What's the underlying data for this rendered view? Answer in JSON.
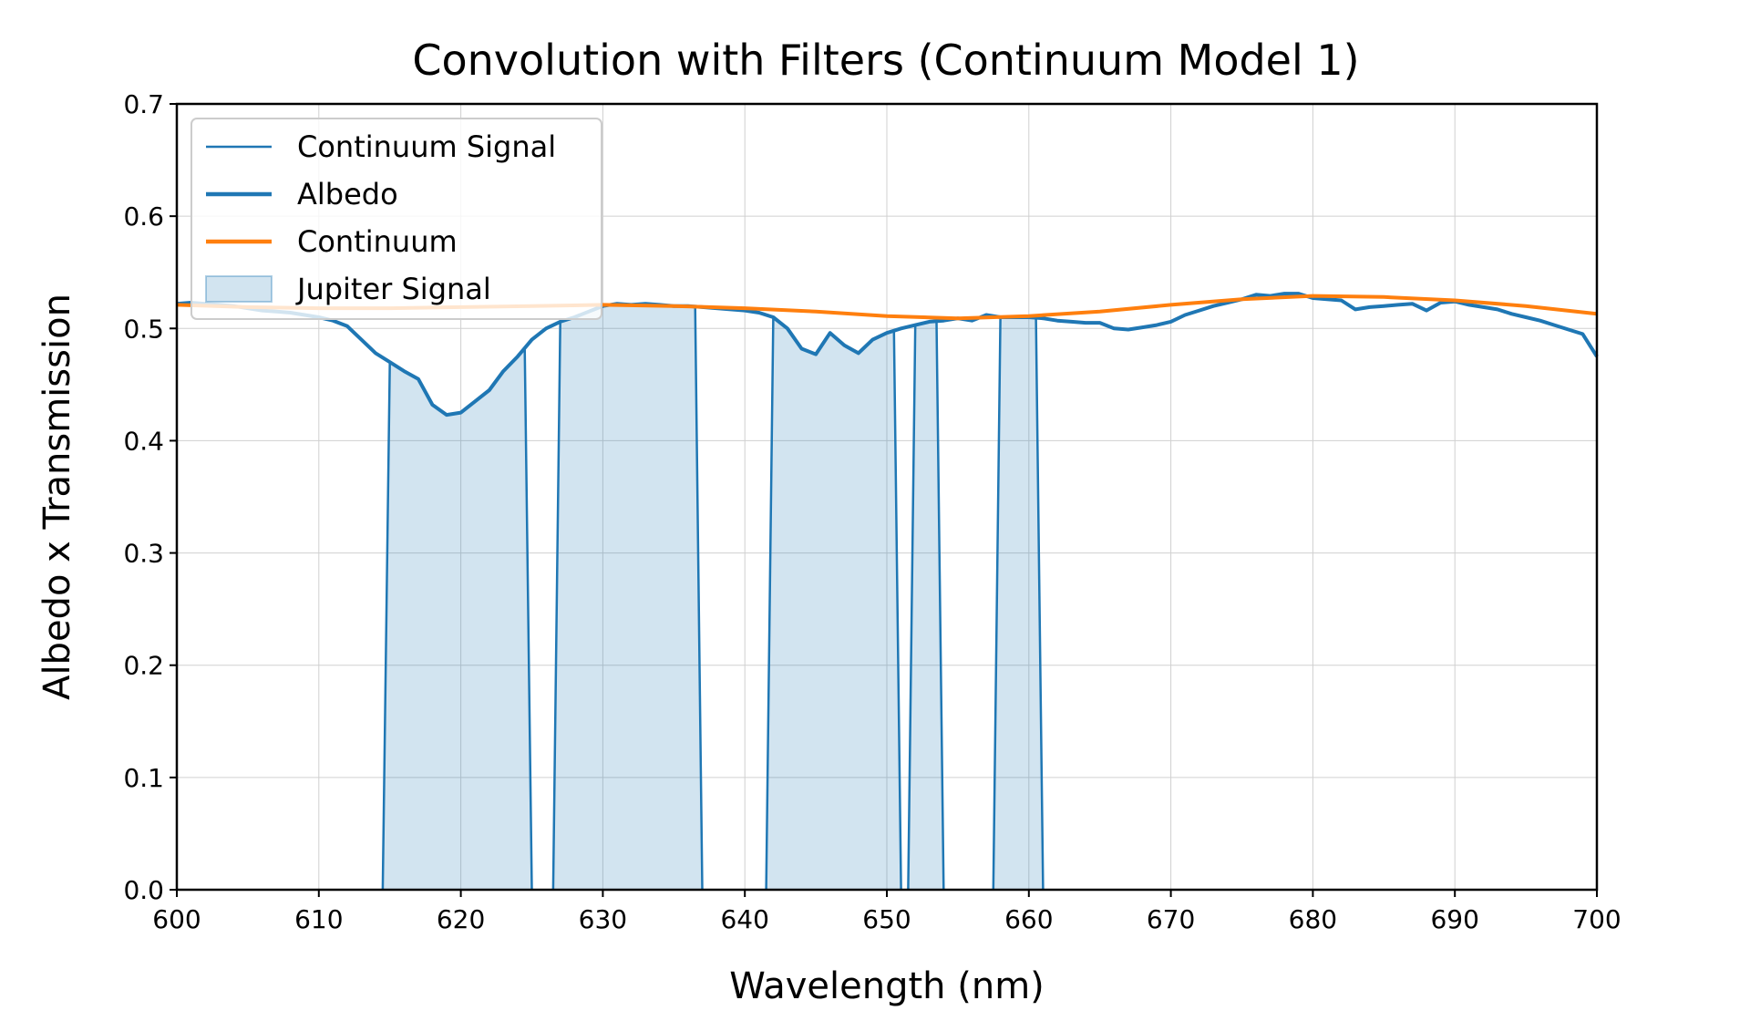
{
  "chart_data": {
    "type": "line",
    "title": "Convolution with Filters (Continuum Model 1)",
    "xlabel": "Wavelength (nm)",
    "ylabel": "Albedo x Transmission",
    "xlim": [
      600,
      700
    ],
    "ylim": [
      0,
      0.7
    ],
    "xticks": [
      "600",
      "610",
      "620",
      "630",
      "640",
      "650",
      "660",
      "670",
      "680",
      "690",
      "700"
    ],
    "yticks": [
      "0.0",
      "0.1",
      "0.2",
      "0.3",
      "0.4",
      "0.5",
      "0.6",
      "0.7"
    ],
    "grid": true,
    "legend_position": "top-left",
    "legend": [
      {
        "label": "Continuum Signal",
        "kind": "thin-line",
        "color": "#1f77b4"
      },
      {
        "label": "Albedo",
        "kind": "line",
        "color": "#1f77b4"
      },
      {
        "label": "Continuum",
        "kind": "line",
        "color": "#ff7f0e"
      },
      {
        "label": "Jupiter Signal",
        "kind": "patch",
        "color": "#1f77b4"
      }
    ],
    "series": [
      {
        "name": "Albedo",
        "color": "#1f77b4",
        "x": [
          600,
          601,
          602,
          603,
          604,
          605,
          606,
          607,
          608,
          609,
          610,
          611,
          612,
          613,
          614,
          615,
          616,
          617,
          618,
          619,
          620,
          621,
          622,
          623,
          624,
          625,
          626,
          627,
          628,
          629,
          630,
          631,
          632,
          633,
          634,
          635,
          636,
          637,
          638,
          639,
          640,
          641,
          642,
          643,
          644,
          645,
          646,
          647,
          648,
          649,
          650,
          651,
          652,
          653,
          654,
          655,
          656,
          657,
          658,
          659,
          660,
          661,
          662,
          663,
          664,
          665,
          666,
          667,
          668,
          669,
          670,
          671,
          672,
          673,
          674,
          675,
          676,
          677,
          678,
          679,
          680,
          681,
          682,
          683,
          684,
          685,
          686,
          687,
          688,
          689,
          690,
          691,
          692,
          693,
          694,
          695,
          696,
          697,
          698,
          699,
          700
        ],
        "y": [
          0.522,
          0.523,
          0.522,
          0.521,
          0.52,
          0.518,
          0.516,
          0.515,
          0.514,
          0.512,
          0.51,
          0.507,
          0.502,
          0.49,
          0.478,
          0.47,
          0.462,
          0.455,
          0.432,
          0.423,
          0.425,
          0.435,
          0.445,
          0.462,
          0.475,
          0.49,
          0.5,
          0.506,
          0.51,
          0.515,
          0.52,
          0.522,
          0.521,
          0.522,
          0.521,
          0.52,
          0.52,
          0.519,
          0.518,
          0.517,
          0.516,
          0.514,
          0.51,
          0.5,
          0.482,
          0.477,
          0.496,
          0.485,
          0.478,
          0.49,
          0.496,
          0.5,
          0.503,
          0.506,
          0.507,
          0.509,
          0.507,
          0.512,
          0.51,
          0.51,
          0.51,
          0.509,
          0.507,
          0.506,
          0.505,
          0.505,
          0.5,
          0.499,
          0.501,
          0.503,
          0.506,
          0.512,
          0.516,
          0.52,
          0.523,
          0.526,
          0.53,
          0.529,
          0.531,
          0.531,
          0.527,
          0.526,
          0.525,
          0.517,
          0.519,
          0.52,
          0.521,
          0.522,
          0.516,
          0.523,
          0.524,
          0.521,
          0.519,
          0.517,
          0.513,
          0.51,
          0.507,
          0.503,
          0.499,
          0.495,
          0.475
        ]
      },
      {
        "name": "Continuum",
        "color": "#ff7f0e",
        "x": [
          600,
          605,
          610,
          615,
          620,
          625,
          630,
          635,
          640,
          645,
          650,
          655,
          660,
          665,
          670,
          675,
          680,
          685,
          690,
          695,
          700
        ],
        "y": [
          0.521,
          0.519,
          0.518,
          0.518,
          0.519,
          0.52,
          0.521,
          0.52,
          0.518,
          0.515,
          0.511,
          0.509,
          0.511,
          0.515,
          0.521,
          0.526,
          0.529,
          0.528,
          0.525,
          0.52,
          0.513
        ]
      }
    ],
    "filter_bands": [
      {
        "x_start": 614.5,
        "x_end": 625.0
      },
      {
        "x_start": 626.5,
        "x_end": 637.0
      },
      {
        "x_start": 641.5,
        "x_end": 651.0
      },
      {
        "x_start": 651.5,
        "x_end": 654.0
      },
      {
        "x_start": 657.5,
        "x_end": 661.0
      }
    ]
  }
}
